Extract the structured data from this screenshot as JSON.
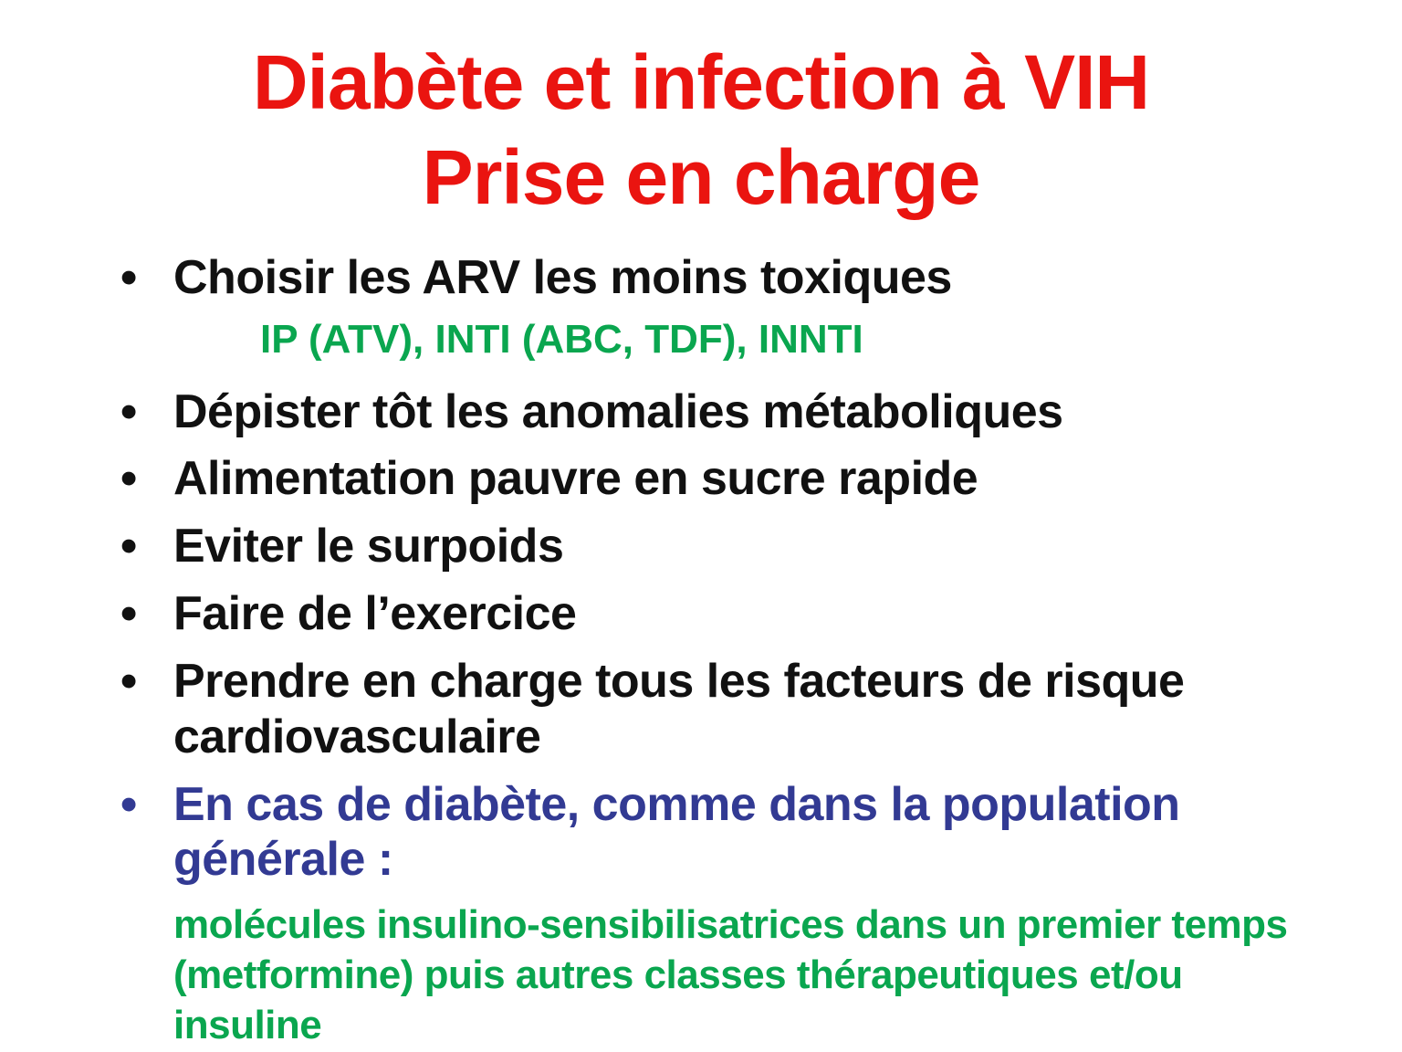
{
  "slide": {
    "colors": {
      "background": "#ffffff",
      "red": "#ea1410",
      "green": "#0aa64f",
      "blue": "#323a93",
      "black": "#111111"
    },
    "title": {
      "lines": [
        "Diabète et infection à VIH",
        "Prise en charge"
      ]
    },
    "bullets": [
      {
        "color": "black",
        "lines": [
          "Choisir les ARV les moins toxiques"
        ]
      },
      {
        "color": "black",
        "lines": [
          "Dépister tôt les anomalies métaboliques"
        ]
      },
      {
        "color": "black",
        "lines": [
          "Alimentation pauvre en sucre rapide"
        ]
      },
      {
        "color": "black",
        "lines": [
          "Eviter le surpoids"
        ]
      },
      {
        "color": "black",
        "lines": [
          "Faire de l’exercice"
        ]
      },
      {
        "color": "black",
        "lines": [
          "Prendre en charge tous les facteurs de risque",
          "cardiovasculaire"
        ]
      },
      {
        "color": "blue",
        "lines": [
          "En cas de diabète, comme dans la population",
          "générale :"
        ]
      }
    ],
    "arv_detail": "IP (ATV), INTI (ABC, TDF), INNTI",
    "treatment_note": {
      "lines": [
        "molécules insulino-sensibilisatrices dans un premier temps",
        "(metformine) puis autres classes thérapeutiques et/ou",
        "insuline"
      ]
    }
  }
}
